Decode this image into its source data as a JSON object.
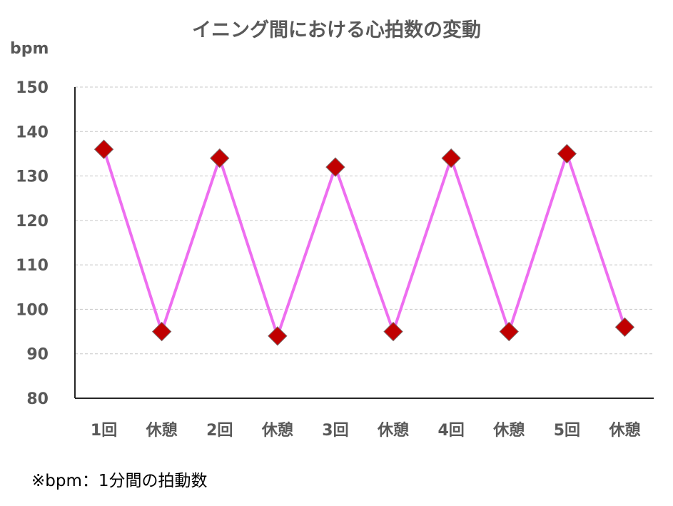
{
  "chart_data": {
    "type": "line",
    "title": "イニング間における心拍数の変動",
    "ylabel": "bpm",
    "xlabel": "",
    "categories": [
      "1回",
      "休憩",
      "2回",
      "休憩",
      "3回",
      "休憩",
      "4回",
      "休憩",
      "5回",
      "休憩"
    ],
    "series": [
      {
        "values": [
          136,
          95,
          134,
          94,
          132,
          95,
          134,
          95,
          135,
          96
        ]
      }
    ],
    "ylim": [
      80,
      150
    ],
    "yticks": [
      80,
      90,
      100,
      110,
      120,
      130,
      140,
      150
    ],
    "grid": true,
    "line_color": "#ee6ef0",
    "marker_color": "#c00000",
    "marker_shape": "diamond"
  },
  "note": "※bpm：1分間の拍動数"
}
